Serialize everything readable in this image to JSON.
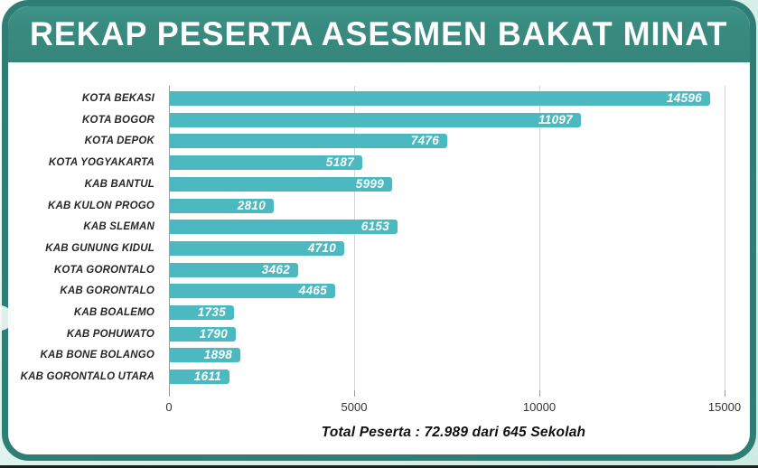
{
  "header": {
    "title": "REKAP PESERTA ASESMEN BAKAT MINAT"
  },
  "footer": {
    "total_label": "Total Peserta : 72.989 dari 645 Sekolah"
  },
  "colors": {
    "header_teal": "#398a7f",
    "card_border_teal": "#2f7e75",
    "bar_teal": "#4cb9c0",
    "background_mint": "#d7efe9",
    "gridline_gray": "#d4d4d4",
    "axis_gray": "#9c9c9c",
    "value_label_white": "#ffffff",
    "category_label_dark": "#272727"
  },
  "chart_data": {
    "type": "bar",
    "orientation": "horizontal",
    "title": "REKAP PESERTA ASESMEN BAKAT MINAT",
    "categories": [
      "KOTA BEKASI",
      "KOTA BOGOR",
      "KOTA DEPOK",
      "KOTA YOGYAKARTA",
      "KAB BANTUL",
      "KAB KULON PROGO",
      "KAB SLEMAN",
      "KAB GUNUNG KIDUL",
      "KOTA GORONTALO",
      "KAB GORONTALO",
      "KAB BOALEMO",
      "KAB POHUWATO",
      "KAB BONE BOLANGO",
      "KAB GORONTALO UTARA"
    ],
    "values": [
      14596,
      11097,
      7476,
      5187,
      5999,
      2810,
      6153,
      4710,
      3462,
      4465,
      1735,
      1790,
      1898,
      1611
    ],
    "value_labels_inside_bars": true,
    "xlim": [
      0,
      15000
    ],
    "xticks": [
      0,
      5000,
      10000,
      15000
    ],
    "xtick_labels": [
      "0",
      "5000",
      "10000",
      "15000"
    ],
    "grid": true,
    "legend": "none",
    "footer_annotation": "Total Peserta : 72.989 dari 645 Sekolah",
    "total_participants": "72.989",
    "total_schools": "645"
  }
}
